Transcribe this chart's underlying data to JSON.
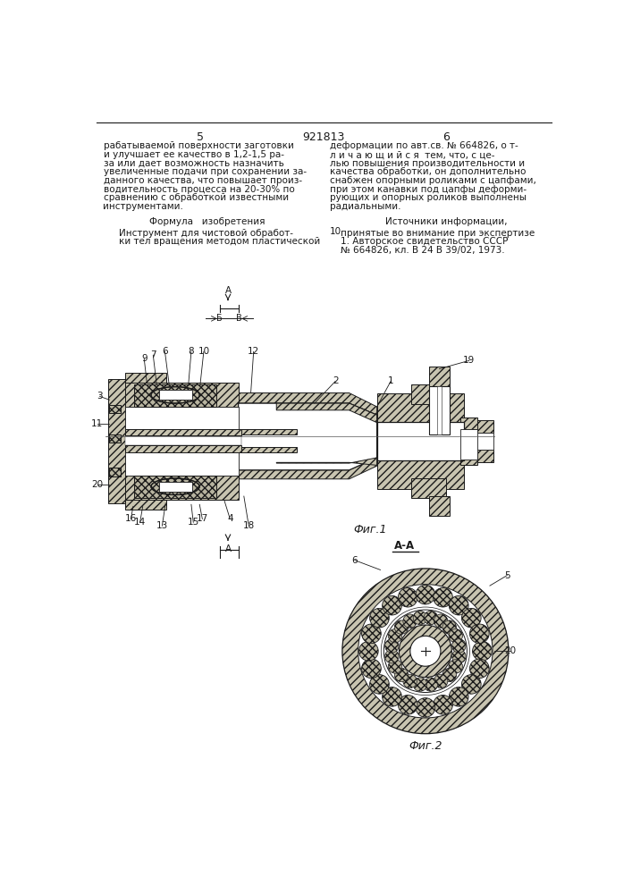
{
  "page_color": "#ffffff",
  "line_color": "#1a1a1a",
  "patent_number": "921813",
  "col_left": "5",
  "col_right": "6",
  "text_left": [
    "рабатываемой поверхности заготовки",
    "и улучшает ее качество в 1,2-1,5 ра-",
    "за или дает возможность назначить",
    "увеличенные подачи при сохранении за-",
    "данного качества, что повышает произ-",
    "водительность процесса на 20-30% по",
    "сравнению с обработкой известными",
    "инструментами."
  ],
  "text_right": [
    "деформации по авт.св. № 664826, о т-",
    "л и ч а ю щ и й с я  тем, что, с це-",
    "лью повышения производительности и",
    "качества обработки, он дополнительно",
    "снабжен опорными роликами с цапфами,",
    "при этом канавки под цапфы деформи-",
    "рующих и опорных роликов выполнены",
    "радиальными."
  ],
  "formula_header": "Формула   изобретения",
  "formula_body": [
    "Инструмент для чистовой обработ-",
    "ки тел вращения методом пластической"
  ],
  "sources_header": "Источники информации,",
  "sources_body": [
    "принятые во внимание при экспертизе",
    "1. Авторское свидетельство СССР",
    "№ 664826, кл. В 24 В 39/02, 1973."
  ],
  "line_num": "10",
  "fig1_caption": "Фиг.1",
  "fig2_caption": "Фиг.2",
  "section_aa": "А-А",
  "hatch_fill": "#c8c4b0",
  "cross_fill": "#b8b4a0",
  "white_fill": "#ffffff"
}
